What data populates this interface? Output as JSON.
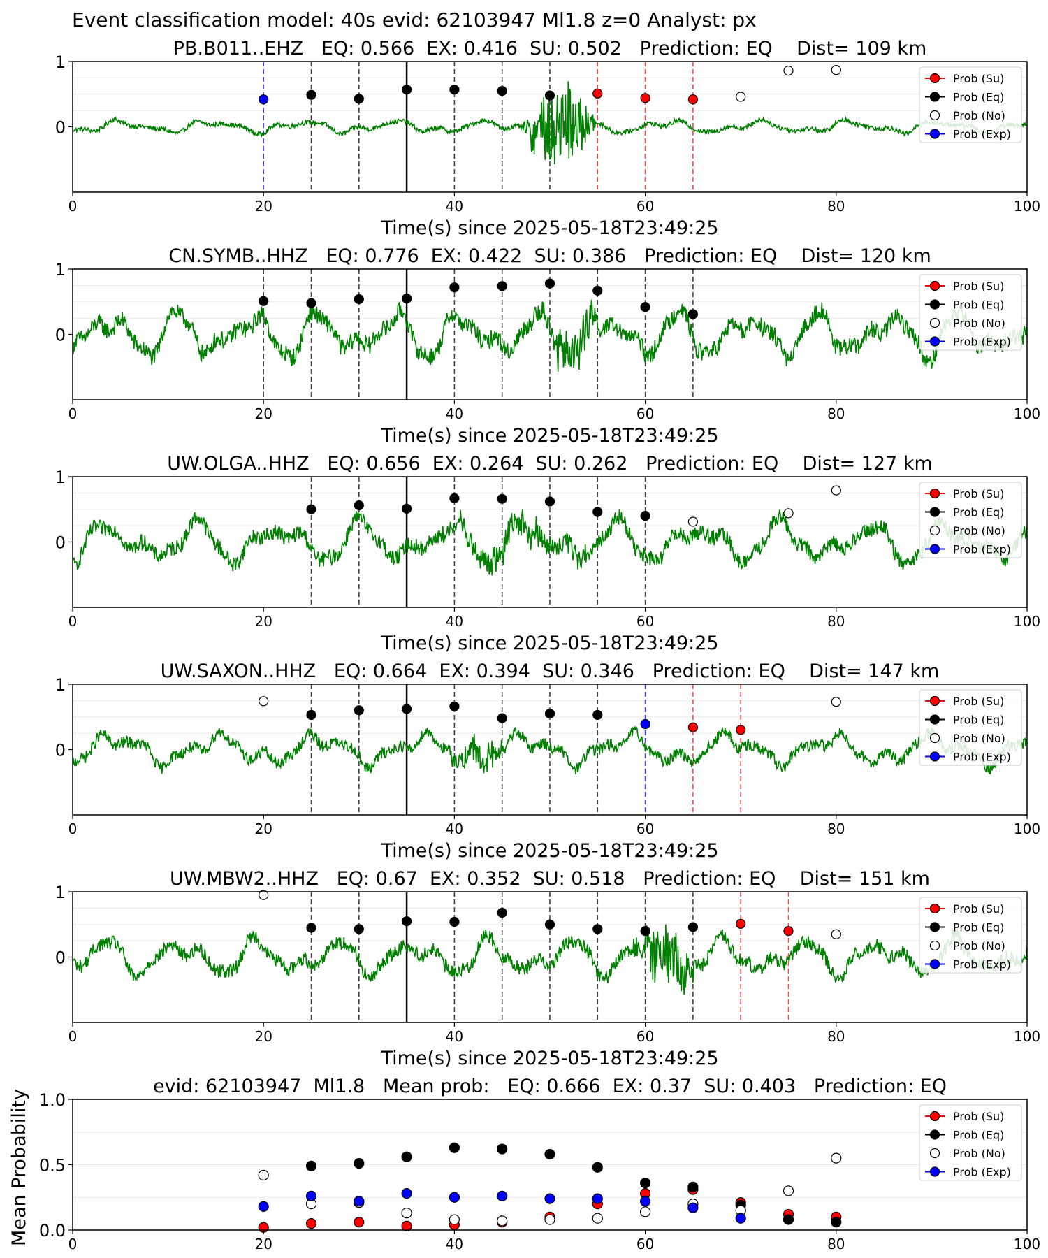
{
  "suptitle": "Event classification model: 40s evid: 62103947 Ml1.8 z=0 Analyst: px",
  "legend_labels": [
    "Prob (Su)",
    "Prob (Eq)",
    "Prob (No)",
    "Prob (Exp)"
  ],
  "colors": {
    "su": "#ff0000",
    "eq": "#000000",
    "no": "#ffffff",
    "exp": "#0000ff",
    "trace": "#008000",
    "vline": "#000000",
    "legend_border": "#cccccc"
  },
  "chart_data": [
    {
      "type": "scatter",
      "title": "PB.B011..EHZ   EQ: 0.566  EX: 0.416  SU: 0.502   Prediction: EQ    Dist= 109 km",
      "xlabel": "Time(s) since 2025-05-18T23:49:25",
      "ylabel": "",
      "xlim": [
        0,
        100
      ],
      "ylim": [
        -1,
        1
      ],
      "xticks": [
        "0",
        "20",
        "40",
        "60",
        "80",
        "100"
      ],
      "yticks": [
        "0",
        "1"
      ],
      "legend": "top-right",
      "trace_amplitude": 0.12,
      "burst": {
        "start": 47,
        "end": 55,
        "amplitude": 0.7
      },
      "arrival_time": 35,
      "points": [
        {
          "x": 20,
          "y": 0.42,
          "cls": "exp"
        },
        {
          "x": 25,
          "y": 0.49,
          "cls": "eq"
        },
        {
          "x": 30,
          "y": 0.43,
          "cls": "eq"
        },
        {
          "x": 35,
          "y": 0.57,
          "cls": "eq"
        },
        {
          "x": 40,
          "y": 0.57,
          "cls": "eq"
        },
        {
          "x": 45,
          "y": 0.55,
          "cls": "eq"
        },
        {
          "x": 50,
          "y": 0.48,
          "cls": "eq"
        },
        {
          "x": 55,
          "y": 0.51,
          "cls": "su"
        },
        {
          "x": 60,
          "y": 0.44,
          "cls": "su"
        },
        {
          "x": 65,
          "y": 0.42,
          "cls": "su"
        },
        {
          "x": 70,
          "y": 0.46,
          "cls": "no"
        },
        {
          "x": 75,
          "y": 0.86,
          "cls": "no"
        },
        {
          "x": 80,
          "y": 0.87,
          "cls": "no"
        }
      ]
    },
    {
      "type": "scatter",
      "title": "CN.SYMB..HHZ   EQ: 0.776  EX: 0.422  SU: 0.386   Prediction: EQ    Dist= 120 km",
      "xlabel": "Time(s) since 2025-05-18T23:49:25",
      "ylabel": "",
      "xlim": [
        0,
        100
      ],
      "ylim": [
        -1,
        1
      ],
      "xticks": [
        "0",
        "20",
        "40",
        "60",
        "80",
        "100"
      ],
      "yticks": [
        "0",
        "1"
      ],
      "legend": "top-right",
      "trace_amplitude": 0.45,
      "burst": {
        "start": 48,
        "end": 56,
        "amplitude": 0.3
      },
      "arrival_time": 35,
      "points": [
        {
          "x": 20,
          "y": 0.51,
          "cls": "eq"
        },
        {
          "x": 25,
          "y": 0.48,
          "cls": "eq"
        },
        {
          "x": 30,
          "y": 0.54,
          "cls": "eq"
        },
        {
          "x": 35,
          "y": 0.55,
          "cls": "eq"
        },
        {
          "x": 40,
          "y": 0.72,
          "cls": "eq"
        },
        {
          "x": 45,
          "y": 0.74,
          "cls": "eq"
        },
        {
          "x": 50,
          "y": 0.78,
          "cls": "eq"
        },
        {
          "x": 55,
          "y": 0.67,
          "cls": "eq"
        },
        {
          "x": 60,
          "y": 0.42,
          "cls": "eq"
        },
        {
          "x": 65,
          "y": 0.31,
          "cls": "eq"
        }
      ]
    },
    {
      "type": "scatter",
      "title": "UW.OLGA..HHZ   EQ: 0.656  EX: 0.264  SU: 0.262   Prediction: EQ    Dist= 127 km",
      "xlabel": "Time(s) since 2025-05-18T23:49:25",
      "ylabel": "",
      "xlim": [
        0,
        100
      ],
      "ylim": [
        -1,
        1
      ],
      "xticks": [
        "0",
        "20",
        "40",
        "60",
        "80",
        "100"
      ],
      "yticks": [
        "0",
        "1"
      ],
      "legend": "top-right",
      "trace_amplitude": 0.4,
      "burst": {
        "start": 37,
        "end": 56,
        "amplitude": 0.2
      },
      "arrival_time": 35,
      "points": [
        {
          "x": 25,
          "y": 0.5,
          "cls": "eq"
        },
        {
          "x": 30,
          "y": 0.56,
          "cls": "eq"
        },
        {
          "x": 35,
          "y": 0.51,
          "cls": "eq"
        },
        {
          "x": 40,
          "y": 0.67,
          "cls": "eq"
        },
        {
          "x": 45,
          "y": 0.66,
          "cls": "eq"
        },
        {
          "x": 50,
          "y": 0.62,
          "cls": "eq"
        },
        {
          "x": 55,
          "y": 0.46,
          "cls": "eq"
        },
        {
          "x": 60,
          "y": 0.4,
          "cls": "eq"
        },
        {
          "x": 65,
          "y": 0.31,
          "cls": "no"
        },
        {
          "x": 75,
          "y": 0.44,
          "cls": "no"
        },
        {
          "x": 80,
          "y": 0.79,
          "cls": "no"
        }
      ]
    },
    {
      "type": "scatter",
      "title": "UW.SAXON..HHZ   EQ: 0.664  EX: 0.394  SU: 0.346   Prediction: EQ    Dist= 147 km",
      "xlabel": "Time(s) since 2025-05-18T23:49:25",
      "ylabel": "",
      "xlim": [
        0,
        100
      ],
      "ylim": [
        -1,
        1
      ],
      "xticks": [
        "0",
        "20",
        "40",
        "60",
        "80",
        "100"
      ],
      "yticks": [
        "0",
        "1"
      ],
      "legend": "top-right",
      "trace_amplitude": 0.3,
      "burst": {
        "start": 39,
        "end": 46,
        "amplitude": 0.25
      },
      "arrival_time": 35,
      "points": [
        {
          "x": 20,
          "y": 0.74,
          "cls": "no"
        },
        {
          "x": 25,
          "y": 0.53,
          "cls": "eq"
        },
        {
          "x": 30,
          "y": 0.6,
          "cls": "eq"
        },
        {
          "x": 35,
          "y": 0.62,
          "cls": "eq"
        },
        {
          "x": 40,
          "y": 0.66,
          "cls": "eq"
        },
        {
          "x": 45,
          "y": 0.48,
          "cls": "eq"
        },
        {
          "x": 50,
          "y": 0.55,
          "cls": "eq"
        },
        {
          "x": 55,
          "y": 0.53,
          "cls": "eq"
        },
        {
          "x": 60,
          "y": 0.39,
          "cls": "exp"
        },
        {
          "x": 65,
          "y": 0.34,
          "cls": "su"
        },
        {
          "x": 70,
          "y": 0.3,
          "cls": "su"
        },
        {
          "x": 80,
          "y": 0.73,
          "cls": "no"
        }
      ]
    },
    {
      "type": "scatter",
      "title": "UW.MBW2..HHZ   EQ: 0.67  EX: 0.352  SU: 0.518   Prediction: EQ    Dist= 151 km",
      "xlabel": "Time(s) since 2025-05-18T23:49:25",
      "ylabel": "",
      "xlim": [
        0,
        100
      ],
      "ylim": [
        -1,
        1
      ],
      "xticks": [
        "0",
        "20",
        "40",
        "60",
        "80",
        "100"
      ],
      "yticks": [
        "0",
        "1"
      ],
      "legend": "top-right",
      "trace_amplitude": 0.35,
      "burst": {
        "start": 58,
        "end": 66,
        "amplitude": 0.45
      },
      "arrival_time": 35,
      "points": [
        {
          "x": 20,
          "y": 0.95,
          "cls": "no"
        },
        {
          "x": 25,
          "y": 0.45,
          "cls": "eq"
        },
        {
          "x": 30,
          "y": 0.43,
          "cls": "eq"
        },
        {
          "x": 35,
          "y": 0.55,
          "cls": "eq"
        },
        {
          "x": 40,
          "y": 0.54,
          "cls": "eq"
        },
        {
          "x": 45,
          "y": 0.68,
          "cls": "eq"
        },
        {
          "x": 50,
          "y": 0.5,
          "cls": "eq"
        },
        {
          "x": 55,
          "y": 0.43,
          "cls": "eq"
        },
        {
          "x": 60,
          "y": 0.4,
          "cls": "eq"
        },
        {
          "x": 65,
          "y": 0.46,
          "cls": "eq"
        },
        {
          "x": 70,
          "y": 0.51,
          "cls": "su"
        },
        {
          "x": 75,
          "y": 0.4,
          "cls": "su"
        },
        {
          "x": 80,
          "y": 0.35,
          "cls": "no"
        }
      ]
    },
    {
      "type": "scatter",
      "title": "evid: 62103947  Ml1.8   Mean prob:   EQ: 0.666  EX: 0.37  SU: 0.403   Prediction: EQ",
      "xlabel": "",
      "ylabel": "Mean Probability",
      "xlim": [
        0,
        100
      ],
      "ylim": [
        0,
        1
      ],
      "xticks": [
        "0",
        "20",
        "40",
        "60",
        "80",
        "100"
      ],
      "yticks": [
        "0.0",
        "0.5",
        "1.0"
      ],
      "legend": "top-right",
      "series": [
        {
          "cls": "su",
          "x": [
            20,
            25,
            30,
            35,
            40,
            45,
            50,
            55,
            60,
            65,
            70,
            75,
            80
          ],
          "y": [
            0.02,
            0.05,
            0.06,
            0.03,
            0.04,
            0.06,
            0.1,
            0.2,
            0.28,
            0.31,
            0.21,
            0.12,
            0.1
          ]
        },
        {
          "cls": "eq",
          "x": [
            25,
            30,
            35,
            40,
            45,
            50,
            55,
            60,
            65,
            70,
            75,
            80
          ],
          "y": [
            0.49,
            0.51,
            0.56,
            0.63,
            0.62,
            0.58,
            0.48,
            0.36,
            0.33,
            0.19,
            0.08,
            0.06
          ]
        },
        {
          "cls": "no",
          "x": [
            20,
            25,
            30,
            35,
            40,
            45,
            50,
            55,
            60,
            65,
            70,
            75,
            80
          ],
          "y": [
            0.42,
            0.2,
            0.21,
            0.13,
            0.08,
            0.07,
            0.08,
            0.09,
            0.14,
            0.2,
            0.15,
            0.3,
            0.55
          ]
        },
        {
          "cls": "exp",
          "x": [
            20,
            25,
            30,
            35,
            40,
            45,
            50,
            55,
            60,
            65,
            70
          ],
          "y": [
            0.18,
            0.26,
            0.22,
            0.28,
            0.25,
            0.26,
            0.24,
            0.24,
            0.22,
            0.17,
            0.09
          ]
        }
      ]
    }
  ]
}
